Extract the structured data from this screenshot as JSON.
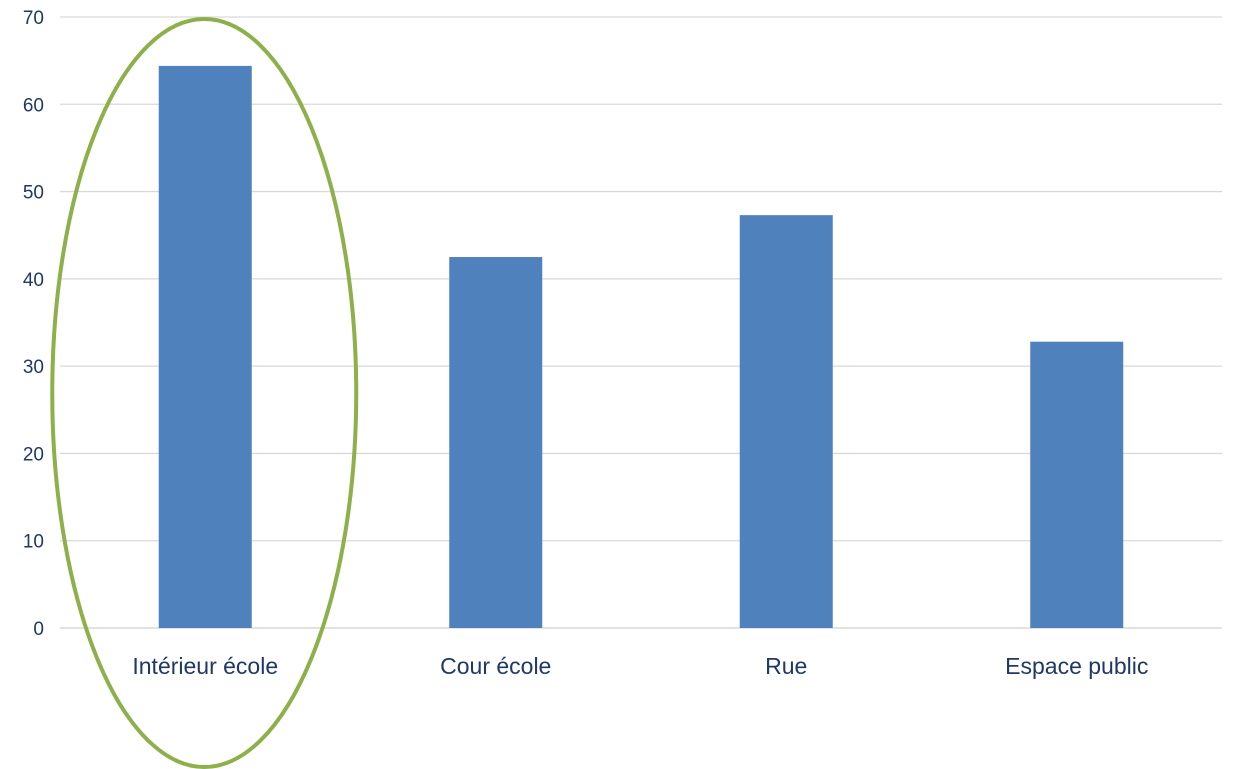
{
  "chart_data": {
    "type": "bar",
    "categories": [
      "Intérieur école",
      "Cour école",
      "Rue",
      "Espace public"
    ],
    "values": [
      64.4,
      42.5,
      47.3,
      32.8
    ],
    "ylim": [
      0,
      70
    ],
    "yticks": [
      0,
      10,
      20,
      30,
      40,
      50,
      60,
      70
    ],
    "grid": true,
    "title": "",
    "xlabel": "",
    "ylabel": "",
    "bar_color": "#4f81bd",
    "highlight": {
      "shape": "ellipse",
      "category": "Intérieur école",
      "color": "#8db04a"
    }
  }
}
